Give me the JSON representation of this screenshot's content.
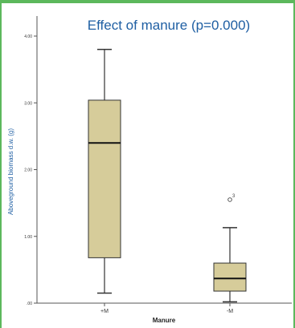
{
  "chart_data": {
    "type": "boxplot",
    "title": "Effect of manure (p=0.000)",
    "xlabel": "Manure",
    "ylabel": "Aboveground biomass d.w. (g)",
    "ylim": [
      0,
      4.15
    ],
    "y_ticks": [
      0,
      1,
      2,
      3,
      4
    ],
    "y_tick_labels": [
      ".00",
      "1.00",
      "2.00",
      "3.00",
      "4.00"
    ],
    "categories": [
      "+M",
      "-M"
    ],
    "box_color": "#d6cc9a",
    "title_color": "#1f5fa3",
    "ylabel_color": "#1f5fa3",
    "grid": false,
    "boxes": [
      {
        "category": "+M",
        "min": 0.15,
        "q1": 0.68,
        "median": 2.4,
        "q3": 3.04,
        "max": 3.8,
        "outliers": []
      },
      {
        "category": "-M",
        "min": 0.02,
        "q1": 0.18,
        "median": 0.37,
        "q3": 0.6,
        "max": 1.13,
        "outliers": [
          {
            "value": 1.55,
            "label": "3"
          }
        ]
      }
    ]
  }
}
